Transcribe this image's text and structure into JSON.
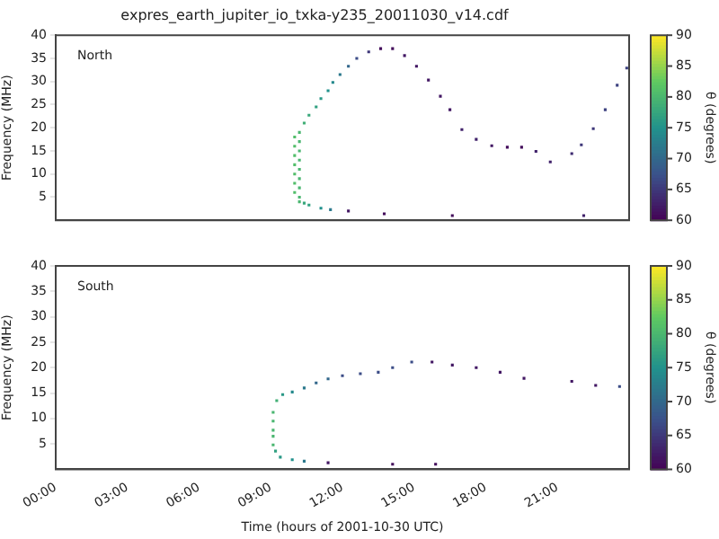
{
  "chart_data": [
    {
      "type": "scatter",
      "title": "expres_earth_jupiter_io_txka-y235_20011030_v14.cdf",
      "ylabel": "Frequency (MHz)",
      "annotations": [
        "North"
      ],
      "clabel": "θ (degrees)",
      "clim": [
        60,
        90
      ],
      "cticks": [
        60,
        65,
        70,
        75,
        80,
        85,
        90
      ],
      "xlim": [
        0,
        24
      ],
      "ylim": [
        0,
        40
      ],
      "yticks": [
        5,
        10,
        15,
        20,
        25,
        30,
        35,
        40
      ],
      "xticks": [
        {
          "value": 0,
          "label": null
        },
        {
          "value": 3,
          "label": null
        },
        {
          "value": 6,
          "label": null
        },
        {
          "value": 9,
          "label": null
        },
        {
          "value": 12,
          "label": null
        },
        {
          "value": 15,
          "label": null
        },
        {
          "value": 18,
          "label": null
        },
        {
          "value": 21,
          "label": null
        }
      ],
      "tick_labels": "y",
      "marker": "square",
      "grid": false,
      "legend": false,
      "x": [
        10.2,
        10.4,
        10.6,
        11.1,
        11.5,
        12.25,
        13.75,
        16.6,
        22.1,
        10.0,
        10.0,
        10.0,
        10.0,
        10.0,
        10.0,
        10.0,
        10.2,
        10.2,
        10.2,
        10.2,
        10.2,
        10.2,
        10.2,
        10.2,
        10.4,
        10.6,
        10.9,
        11.1,
        11.4,
        11.6,
        11.9,
        12.25,
        12.6,
        13.1,
        13.6,
        14.1,
        14.6,
        15.1,
        15.6,
        16.1,
        16.5,
        17.0,
        17.6,
        18.25,
        18.9,
        19.5,
        20.1,
        20.7,
        21.6,
        22.0,
        22.5,
        23.0,
        23.5,
        23.9
      ],
      "values": [
        4,
        3.7,
        3.3,
        2.6,
        2.3,
        2.0,
        1.4,
        1.0,
        1.0,
        6,
        8,
        10,
        12,
        14,
        16,
        18,
        5,
        7,
        9,
        11,
        13,
        15,
        17,
        19,
        21,
        22.7,
        24.5,
        26.3,
        28,
        29.8,
        31.5,
        33.3,
        35,
        36.4,
        37.1,
        37.1,
        35.6,
        33.3,
        30.3,
        26.8,
        23.9,
        19.6,
        17.5,
        16.1,
        15.8,
        15.8,
        14.9,
        12.6,
        14.4,
        16.3,
        19.8,
        23.9,
        29.2,
        32.9
      ],
      "cvalues": [
        80,
        78,
        77,
        75,
        72,
        62,
        61,
        61,
        63,
        81,
        81,
        81,
        81,
        81,
        81,
        81,
        80,
        80,
        80,
        80,
        80,
        80,
        80,
        80,
        79,
        78,
        77,
        76,
        75,
        74,
        72,
        70,
        67,
        65,
        61,
        61,
        62,
        62,
        62,
        62,
        62,
        63,
        63,
        62,
        61,
        61,
        63,
        63,
        64,
        65,
        65,
        66,
        66,
        66
      ]
    },
    {
      "type": "scatter",
      "xlabel": "Time (hours of 2001-10-30 UTC)",
      "ylabel": "Frequency (MHz)",
      "annotations": [
        "South"
      ],
      "clabel": "θ (degrees)",
      "clim": [
        60,
        90
      ],
      "cticks": [
        60,
        65,
        70,
        75,
        80,
        85,
        90
      ],
      "xlim": [
        0,
        24
      ],
      "ylim": [
        0,
        40
      ],
      "yticks": [
        5,
        10,
        15,
        20,
        25,
        30,
        35,
        40
      ],
      "xticks": [
        {
          "value": 0,
          "label": "00:00"
        },
        {
          "value": 3,
          "label": "03:00"
        },
        {
          "value": 6,
          "label": "06:00"
        },
        {
          "value": 9,
          "label": "09:00"
        },
        {
          "value": 12,
          "label": "12:00"
        },
        {
          "value": 15,
          "label": "15:00"
        },
        {
          "value": 18,
          "label": "18:00"
        },
        {
          "value": 21,
          "label": "21:00"
        }
      ],
      "marker": "square",
      "grid": false,
      "legend": false,
      "x": [
        9.1,
        9.1,
        9.1,
        9.1,
        9.1,
        9.25,
        9.5,
        9.9,
        10.4,
        10.9,
        11.4,
        12.0,
        12.75,
        13.5,
        14.1,
        14.9,
        15.75,
        16.6,
        17.6,
        18.6,
        19.6,
        21.6,
        22.6,
        23.6,
        9.2,
        9.4,
        9.9,
        10.4,
        11.4,
        14.1,
        15.9
      ],
      "values": [
        4.8,
        6.5,
        7.7,
        9.5,
        11.2,
        13.5,
        14.7,
        15.2,
        16,
        17,
        17.8,
        18.4,
        18.8,
        19.1,
        20,
        21.1,
        21.1,
        20.5,
        20,
        19.1,
        17.9,
        17.3,
        16.5,
        16.3,
        3.6,
        2.4,
        1.9,
        1.6,
        1.3,
        1.0,
        1.0
      ],
      "cvalues": [
        80,
        80,
        80,
        80,
        80,
        79,
        76,
        74,
        72,
        70,
        70,
        67,
        67,
        67,
        67,
        67,
        62,
        62,
        62,
        62,
        62,
        62,
        62,
        67,
        77,
        76,
        75,
        72,
        62,
        61,
        61
      ]
    }
  ]
}
